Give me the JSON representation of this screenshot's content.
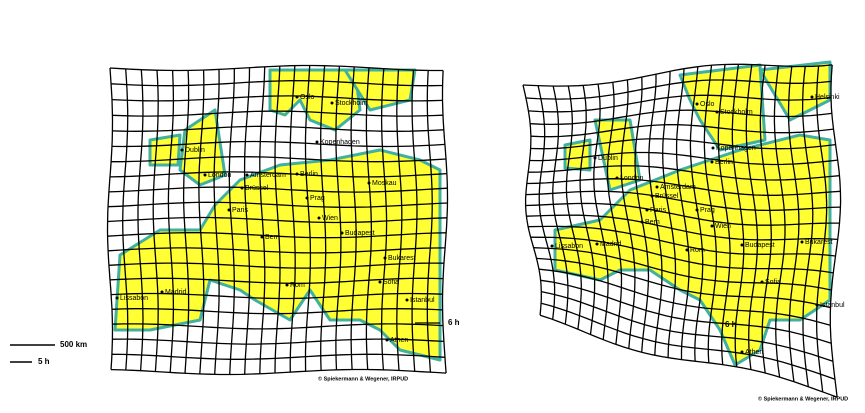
{
  "left_map": {
    "cities": [
      "Oslo",
      "Stockholm",
      "Dublin",
      "London",
      "Kopenhagen",
      "Amsterdam",
      "Berlin",
      "Moskau",
      "Brüssel",
      "Paris",
      "Prag",
      "Wien",
      "Bern",
      "Budapest",
      "Madrid",
      "Lissabon",
      "Rom",
      "Bukarest",
      "Sofia",
      "Istanbul",
      "Athen"
    ],
    "scale_distance": "500 km",
    "scale_time": "5 h",
    "isochrone": "6 h",
    "credit": "© Spiekermann & Wegener, IRPUD"
  },
  "right_map": {
    "cities": [
      "Helsinki",
      "Oslo",
      "Stockholm",
      "Kopenhagen",
      "Berlin",
      "Dublin",
      "London",
      "Amsterdam",
      "Brüssel",
      "Paris",
      "Prag",
      "Bern",
      "Wien",
      "Budapest",
      "Madrid",
      "Lissabon",
      "Rom",
      "Bukarest",
      "Sofia",
      "Istanbul",
      "Athen"
    ],
    "isochrone": "6 h",
    "credit": "© Spiekermann & Wegener, IRPUD"
  }
}
